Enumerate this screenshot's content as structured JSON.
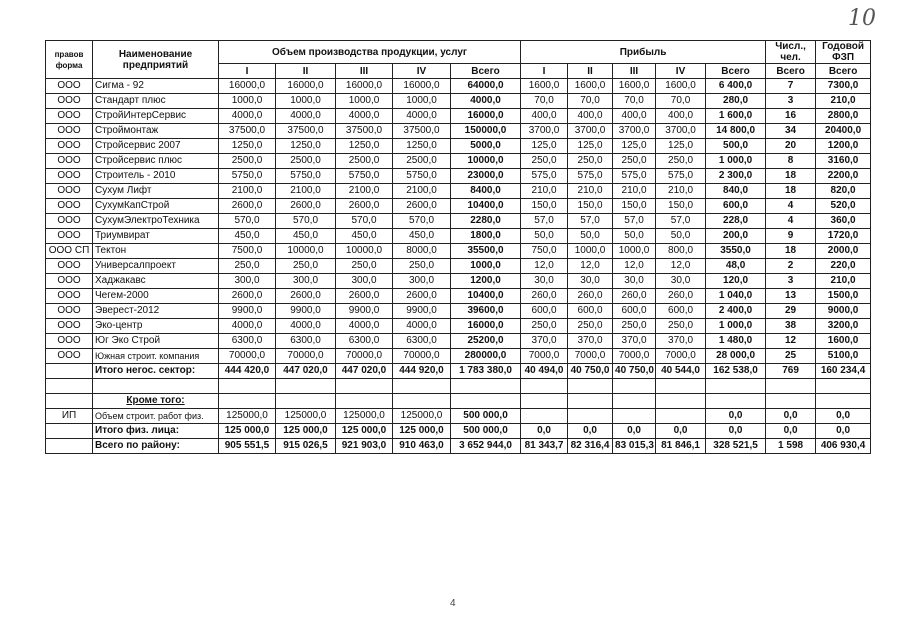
{
  "handwritten_number": "10",
  "page_number": "4",
  "header": {
    "legal_form": "правов форма",
    "name": "Наименование предприятий",
    "production": "Объем производства продукции, услуг",
    "profit": "Прибыль",
    "staff": "Числ., чел.",
    "payroll": "Годовой ФЗП",
    "production_sub": [
      "I",
      "II",
      "III",
      "IV",
      "Всего"
    ],
    "profit_sub": [
      "I",
      "II",
      "III",
      "IV",
      "Всего"
    ],
    "staff_sub": "Всего",
    "payroll_sub": "Всего"
  },
  "table": {
    "rows": [
      [
        "ООО",
        "Сигма - 92",
        "16000,0",
        "16000,0",
        "16000,0",
        "16000,0",
        "64000,0",
        "1600,0",
        "1600,0",
        "1600,0",
        "1600,0",
        "6 400,0",
        "7",
        "7300,0"
      ],
      [
        "ООО",
        "Стандарт плюс",
        "1000,0",
        "1000,0",
        "1000,0",
        "1000,0",
        "4000,0",
        "70,0",
        "70,0",
        "70,0",
        "70,0",
        "280,0",
        "3",
        "210,0"
      ],
      [
        "ООО",
        "СтройИнтерСервис",
        "4000,0",
        "4000,0",
        "4000,0",
        "4000,0",
        "16000,0",
        "400,0",
        "400,0",
        "400,0",
        "400,0",
        "1 600,0",
        "16",
        "2800,0"
      ],
      [
        "ООО",
        "Строймонтаж",
        "37500,0",
        "37500,0",
        "37500,0",
        "37500,0",
        "150000,0",
        "3700,0",
        "3700,0",
        "3700,0",
        "3700,0",
        "14 800,0",
        "34",
        "20400,0"
      ],
      [
        "ООО",
        "Стройсервис 2007",
        "1250,0",
        "1250,0",
        "1250,0",
        "1250,0",
        "5000,0",
        "125,0",
        "125,0",
        "125,0",
        "125,0",
        "500,0",
        "20",
        "1200,0"
      ],
      [
        "ООО",
        "Стройсервис плюс",
        "2500,0",
        "2500,0",
        "2500,0",
        "2500,0",
        "10000,0",
        "250,0",
        "250,0",
        "250,0",
        "250,0",
        "1 000,0",
        "8",
        "3160,0"
      ],
      [
        "ООО",
        "Строитель - 2010",
        "5750,0",
        "5750,0",
        "5750,0",
        "5750,0",
        "23000,0",
        "575,0",
        "575,0",
        "575,0",
        "575,0",
        "2 300,0",
        "18",
        "2200,0"
      ],
      [
        "ООО",
        "Сухум Лифт",
        "2100,0",
        "2100,0",
        "2100,0",
        "2100,0",
        "8400,0",
        "210,0",
        "210,0",
        "210,0",
        "210,0",
        "840,0",
        "18",
        "820,0"
      ],
      [
        "ООО",
        "СухумКапСтрой",
        "2600,0",
        "2600,0",
        "2600,0",
        "2600,0",
        "10400,0",
        "150,0",
        "150,0",
        "150,0",
        "150,0",
        "600,0",
        "4",
        "520,0"
      ],
      [
        "ООО",
        "СухумЭлектроТехника",
        "570,0",
        "570,0",
        "570,0",
        "570,0",
        "2280,0",
        "57,0",
        "57,0",
        "57,0",
        "57,0",
        "228,0",
        "4",
        "360,0"
      ],
      [
        "ООО",
        "Триумвират",
        "450,0",
        "450,0",
        "450,0",
        "450,0",
        "1800,0",
        "50,0",
        "50,0",
        "50,0",
        "50,0",
        "200,0",
        "9",
        "1720,0"
      ],
      [
        "ООО СП",
        "Тектон",
        "7500,0",
        "10000,0",
        "10000,0",
        "8000,0",
        "35500,0",
        "750,0",
        "1000,0",
        "1000,0",
        "800,0",
        "3550,0",
        "18",
        "2000,0"
      ],
      [
        "ООО",
        "Универсалпроект",
        "250,0",
        "250,0",
        "250,0",
        "250,0",
        "1000,0",
        "12,0",
        "12,0",
        "12,0",
        "12,0",
        "48,0",
        "2",
        "220,0"
      ],
      [
        "ООО",
        "Хаджакавс",
        "300,0",
        "300,0",
        "300,0",
        "300,0",
        "1200,0",
        "30,0",
        "30,0",
        "30,0",
        "30,0",
        "120,0",
        "3",
        "210,0"
      ],
      [
        "ООО",
        "Чегем-2000",
        "2600,0",
        "2600,0",
        "2600,0",
        "2600,0",
        "10400,0",
        "260,0",
        "260,0",
        "260,0",
        "260,0",
        "1 040,0",
        "13",
        "1500,0"
      ],
      [
        "ООО",
        "Эверест-2012",
        "9900,0",
        "9900,0",
        "9900,0",
        "9900,0",
        "39600,0",
        "600,0",
        "600,0",
        "600,0",
        "600,0",
        "2 400,0",
        "29",
        "9000,0"
      ],
      [
        "ООО",
        "Эко-центр",
        "4000,0",
        "4000,0",
        "4000,0",
        "4000,0",
        "16000,0",
        "250,0",
        "250,0",
        "250,0",
        "250,0",
        "1 000,0",
        "38",
        "3200,0"
      ],
      [
        "ООО",
        "Юг Эко Строй",
        "6300,0",
        "6300,0",
        "6300,0",
        "6300,0",
        "25200,0",
        "370,0",
        "370,0",
        "370,0",
        "370,0",
        "1 480,0",
        "12",
        "1600,0"
      ],
      [
        "ООО",
        "Южная строит. компания",
        "70000,0",
        "70000,0",
        "70000,0",
        "70000,0",
        "280000,0",
        "7000,0",
        "7000,0",
        "7000,0",
        "7000,0",
        "28 000,0",
        "25",
        "5100,0"
      ],
      [
        null,
        "Итого негос. сектор:",
        "444 420,0",
        "447 020,0",
        "447 020,0",
        "444 920,0",
        "1 783 380,0",
        "40 494,0",
        "40 750,0",
        "40 750,0",
        "40 544,0",
        "162 538,0",
        "769",
        "160 234,4"
      ],
      [
        null,
        null,
        null,
        null,
        null,
        null,
        null,
        null,
        null,
        null,
        null,
        null,
        null,
        null
      ],
      [
        null,
        "Кроме того:",
        null,
        null,
        null,
        null,
        null,
        null,
        null,
        null,
        null,
        null,
        null,
        null
      ],
      [
        "ИП",
        "Объем строит. работ физ.",
        "125000,0",
        "125000,0",
        "125000,0",
        "125000,0",
        "500 000,0",
        null,
        null,
        null,
        null,
        "0,0",
        "0,0",
        "0,0"
      ],
      [
        null,
        "Итого физ. лица:",
        "125 000,0",
        "125 000,0",
        "125 000,0",
        "125 000,0",
        "500 000,0",
        "0,0",
        "0,0",
        "0,0",
        "0,0",
        "0,0",
        "0,0",
        "0,0"
      ],
      [
        null,
        "Всего по району:",
        "905 551,5",
        "915 026,5",
        "921 903,0",
        "910 463,0",
        "3 652 944,0",
        "81 343,7",
        "82 316,4",
        "83 015,3",
        "81 846,1",
        "328 521,5",
        "1 598",
        "406 930,4"
      ]
    ]
  }
}
